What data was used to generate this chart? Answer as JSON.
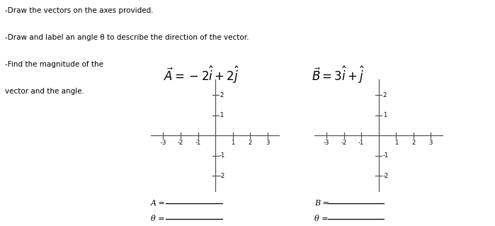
{
  "background_color": "#ffffff",
  "text_line1": "-Draw the vectors on the axes provided.",
  "text_line2": "-Draw and label an angle θ to describe the direction of the vector.",
  "text_line3": "-Find the magnitude of the",
  "text_line4": "vector and the angle.",
  "vec_A_label": "$\\vec{A} = -2\\hat{i} + 2\\hat{j}$",
  "vec_B_label": "$\\vec{B} = 3\\hat{i} + \\hat{j}$",
  "axis_xlim": [
    -3.7,
    3.7
  ],
  "axis_ylim": [
    -2.8,
    2.8
  ],
  "xticks": [
    -3,
    -2,
    -1,
    1,
    2,
    3
  ],
  "yticks": [
    -2,
    -1,
    1,
    2
  ],
  "A_blank_label": "A =",
  "B_blank_label": "B =",
  "theta_A_label": "θ =",
  "theta_B_label": "θ =",
  "font_size_text": 7.5,
  "font_size_eq": 12,
  "font_size_tick": 6,
  "font_size_label": 8
}
